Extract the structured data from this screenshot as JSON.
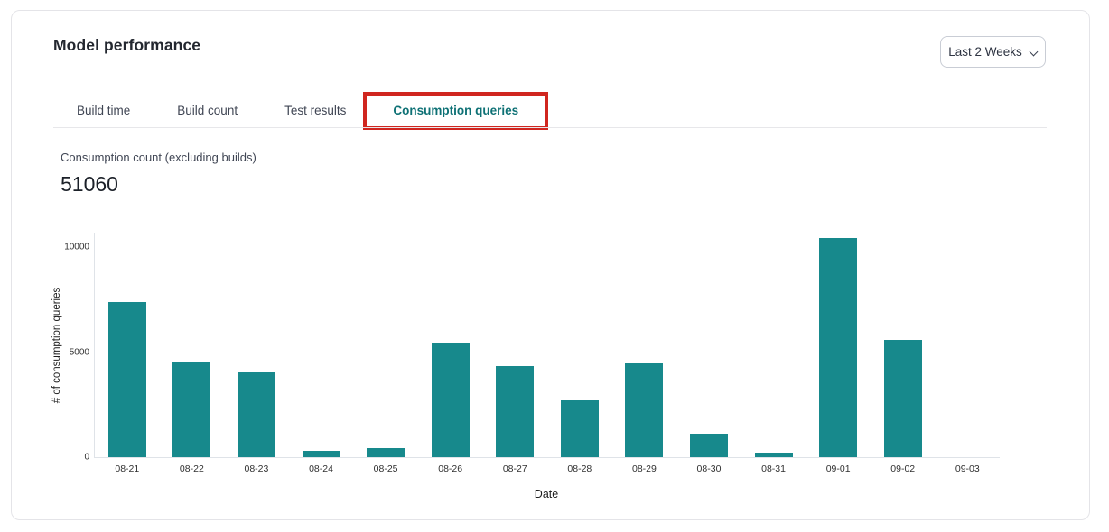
{
  "header": {
    "title": "Model performance",
    "time_range": "Last 2 Weeks"
  },
  "tabs": [
    {
      "label": "Build time",
      "active": false
    },
    {
      "label": "Build count",
      "active": false
    },
    {
      "label": "Test results",
      "active": false
    },
    {
      "label": "Consumption queries",
      "active": true,
      "annotated": true
    }
  ],
  "metric": {
    "label": "Consumption count (excluding builds)",
    "value": "51060"
  },
  "colors": {
    "bar": "#17898c",
    "active_tab": "#0e7175",
    "annotation": "#d0261f"
  },
  "chart_data": {
    "type": "bar",
    "title": "",
    "categories": [
      "08-21",
      "08-22",
      "08-23",
      "08-24",
      "08-25",
      "08-26",
      "08-27",
      "08-28",
      "08-29",
      "08-30",
      "08-31",
      "09-01",
      "09-02",
      "09-03"
    ],
    "values": [
      7400,
      4550,
      4050,
      300,
      430,
      5450,
      4350,
      2700,
      4450,
      1120,
      210,
      10450,
      5600,
      0
    ],
    "xlabel": "Date",
    "ylabel": "# of consumption queries",
    "yticks": [
      0,
      5000,
      10000
    ],
    "ylim": [
      0,
      10700
    ],
    "grid": false,
    "legend": false
  }
}
